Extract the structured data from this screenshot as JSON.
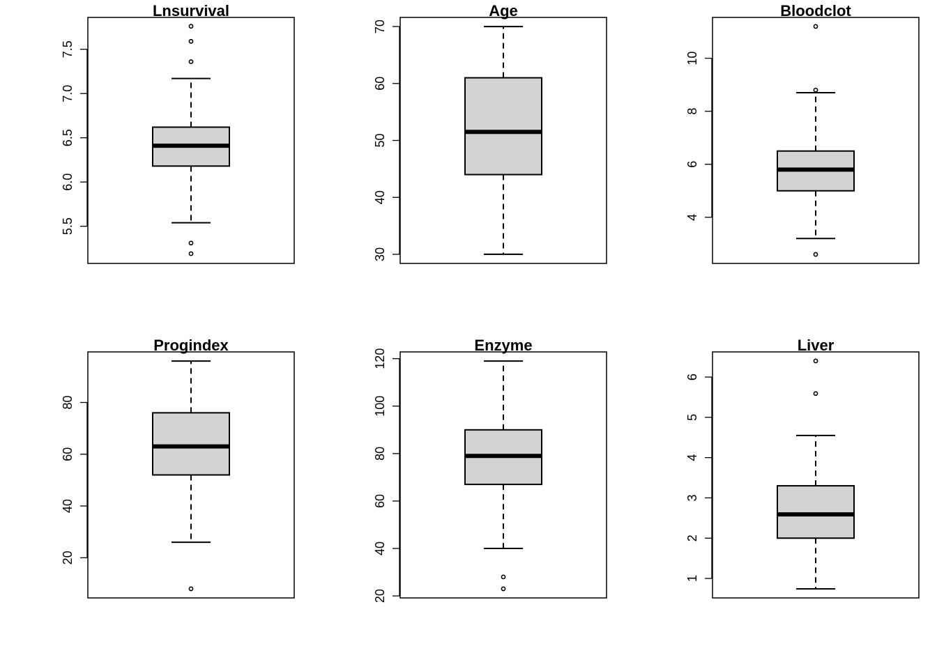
{
  "chart_data": [
    {
      "type": "box",
      "title": "Lnsurvival",
      "yticks": [
        5.5,
        6.0,
        6.5,
        7.0,
        7.5
      ],
      "ytick_labels": [
        "5.5",
        "6.0",
        "6.5",
        "7.0",
        "7.5"
      ],
      "ylim": [
        5.08,
        7.86
      ],
      "whisker_low": 5.54,
      "q1": 6.18,
      "median": 6.41,
      "q3": 6.62,
      "whisker_high": 7.17,
      "outliers": [
        5.19,
        5.31,
        7.36,
        7.59,
        7.76
      ]
    },
    {
      "type": "box",
      "title": "Age",
      "yticks": [
        30,
        40,
        50,
        60,
        70
      ],
      "ytick_labels": [
        "30",
        "40",
        "50",
        "60",
        "70"
      ],
      "ylim": [
        28.4,
        71.6
      ],
      "whisker_low": 30,
      "q1": 44,
      "median": 51.5,
      "q3": 61,
      "whisker_high": 70,
      "outliers": []
    },
    {
      "type": "box",
      "title": "Bloodclot",
      "yticks": [
        4,
        6,
        8,
        10
      ],
      "ytick_labels": [
        "4",
        "6",
        "8",
        "10"
      ],
      "ylim": [
        2.26,
        11.54
      ],
      "whisker_low": 3.2,
      "q1": 5.0,
      "median": 5.8,
      "q3": 6.5,
      "whisker_high": 8.7,
      "outliers": [
        2.6,
        8.8,
        11.2
      ]
    },
    {
      "type": "box",
      "title": "Progindex",
      "yticks": [
        20,
        40,
        60,
        80
      ],
      "ytick_labels": [
        "20",
        "40",
        "60",
        "80"
      ],
      "ylim": [
        4.48,
        99.52
      ],
      "whisker_low": 26,
      "q1": 52,
      "median": 63,
      "q3": 76,
      "whisker_high": 96,
      "outliers": [
        8
      ]
    },
    {
      "type": "box",
      "title": "Enzyme",
      "yticks": [
        20,
        40,
        60,
        80,
        100,
        120
      ],
      "ytick_labels": [
        "20",
        "40",
        "60",
        "80",
        "100",
        "120"
      ],
      "ylim": [
        19.16,
        122.84
      ],
      "whisker_low": 40,
      "q1": 67,
      "median": 79,
      "q3": 90,
      "whisker_high": 119,
      "outliers": [
        23,
        28
      ]
    },
    {
      "type": "box",
      "title": "Liver",
      "yticks": [
        1,
        2,
        3,
        4,
        5,
        6
      ],
      "ytick_labels": [
        "1",
        "2",
        "3",
        "4",
        "5",
        "6"
      ],
      "ylim": [
        0.516,
        6.624
      ],
      "whisker_low": 0.74,
      "q1": 2.0,
      "median": 2.59,
      "q3": 3.3,
      "whisker_high": 4.55,
      "outliers": [
        5.59,
        6.4
      ]
    }
  ],
  "colors": {
    "box_fill": "#d3d3d3",
    "stroke": "#000000",
    "background": "#ffffff"
  }
}
